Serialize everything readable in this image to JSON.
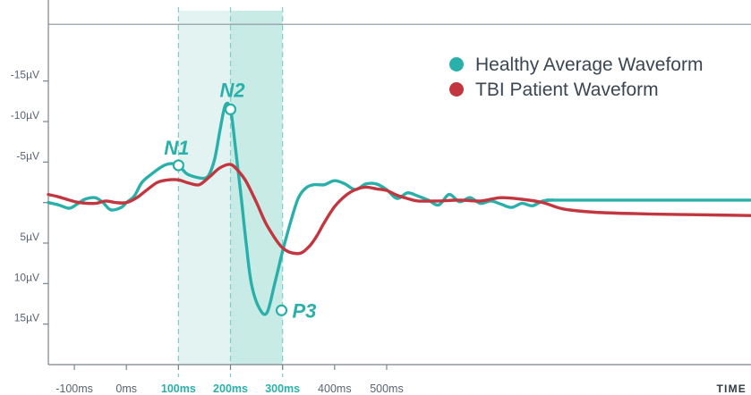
{
  "chart_data": {
    "type": "line",
    "xlabel": "TIME",
    "ylabel": "",
    "x_unit": "ms",
    "y_unit": "µV",
    "y_inverted": true,
    "xlim": [
      -150,
      1200
    ],
    "ylim": [
      20,
      -25
    ],
    "x_ticks": [
      {
        "value": -100,
        "label": "-100ms",
        "highlight": false
      },
      {
        "value": 0,
        "label": "0ms",
        "highlight": false
      },
      {
        "value": 100,
        "label": "100ms",
        "highlight": true
      },
      {
        "value": 200,
        "label": "200ms",
        "highlight": true
      },
      {
        "value": 300,
        "label": "300ms",
        "highlight": true
      },
      {
        "value": 400,
        "label": "400ms",
        "highlight": false
      },
      {
        "value": 500,
        "label": "500ms",
        "highlight": false
      }
    ],
    "y_ticks": [
      {
        "value": -15,
        "label": "-15µV"
      },
      {
        "value": -10,
        "label": "-10µV"
      },
      {
        "value": -5,
        "label": "-5µV"
      },
      {
        "value": 5,
        "label": "5µV"
      },
      {
        "value": 10,
        "label": "10µV"
      },
      {
        "value": 15,
        "label": "15µV"
      }
    ],
    "shaded_windows": [
      {
        "from": 100,
        "to": 200,
        "color": "#e2f3f1"
      },
      {
        "from": 200,
        "to": 300,
        "color": "#c9ebe6"
      }
    ],
    "top_reference_line": -22,
    "series": [
      {
        "name": "Healthy Average Waveform",
        "color": "#2ab0aa",
        "x": [
          -150,
          -130,
          -110,
          -95,
          -80,
          -60,
          -45,
          -30,
          -10,
          0,
          15,
          30,
          50,
          70,
          85,
          100,
          115,
          130,
          150,
          160,
          170,
          180,
          190,
          200,
          210,
          220,
          230,
          240,
          255,
          270,
          285,
          300,
          315,
          330,
          345,
          360,
          380,
          400,
          420,
          440,
          460,
          480,
          500,
          520,
          540,
          560,
          580,
          600,
          620,
          640,
          660,
          680,
          700,
          720,
          740,
          760,
          780,
          800,
          820,
          840,
          1200
        ],
        "values": [
          0,
          0.3,
          0.7,
          0.2,
          -0.4,
          -0.6,
          0,
          0.9,
          0.6,
          0,
          -0.8,
          -2.5,
          -3.6,
          -4.5,
          -4.8,
          -4.6,
          -3.6,
          -3.2,
          -3.0,
          -3.6,
          -5.5,
          -9,
          -12,
          -11.5,
          -6.5,
          -1,
          5,
          10,
          13,
          13.6,
          10,
          6,
          2.5,
          -0.5,
          -1.8,
          -2.2,
          -2.2,
          -2.7,
          -2.3,
          -1.6,
          -2.3,
          -2.3,
          -1.6,
          -0.5,
          -1.2,
          -0.8,
          -0.3,
          0.3,
          -1,
          -0.1,
          -0.6,
          0.1,
          -0.2,
          0.2,
          0.6,
          0.1,
          0.4,
          -0.2,
          -0.3,
          -0.3,
          -0.3
        ]
      },
      {
        "name": "TBI Patient Waveform",
        "color": "#c2363f",
        "x": [
          -150,
          -130,
          -110,
          -90,
          -60,
          -40,
          -20,
          0,
          20,
          40,
          60,
          80,
          100,
          120,
          140,
          160,
          180,
          200,
          215,
          230,
          250,
          270,
          300,
          330,
          350,
          365,
          380,
          400,
          420,
          440,
          460,
          480,
          500,
          520,
          540,
          560,
          600,
          640,
          680,
          720,
          760,
          800,
          840,
          900,
          1000,
          1100,
          1200
        ],
        "values": [
          -1,
          -0.7,
          -0.3,
          0,
          0.1,
          -0.2,
          0,
          0,
          -0.6,
          -1.6,
          -2.5,
          -2.8,
          -2.8,
          -2.4,
          -2.2,
          -3.2,
          -4.3,
          -4.7,
          -3.9,
          -2.6,
          0,
          2.8,
          5.6,
          6.3,
          5.5,
          4.2,
          2.5,
          0.5,
          -0.8,
          -1.6,
          -1.9,
          -1.7,
          -1.5,
          -0.9,
          -0.5,
          -0.2,
          -0.2,
          -0.3,
          -0.2,
          -0.6,
          -0.4,
          0,
          0.8,
          1.2,
          1.4,
          1.5,
          1.6
        ]
      }
    ],
    "annotations": [
      {
        "text": "N1",
        "series": 0,
        "x": 100,
        "y": -4.6,
        "position": "above-left"
      },
      {
        "text": "N2",
        "series": 0,
        "x": 200,
        "y": -11.5,
        "position": "above"
      },
      {
        "text": "P3",
        "series": 0,
        "x": 298,
        "y": 13.3,
        "position": "right"
      }
    ],
    "legend": {
      "placement": "top-right"
    },
    "grid": false
  }
}
